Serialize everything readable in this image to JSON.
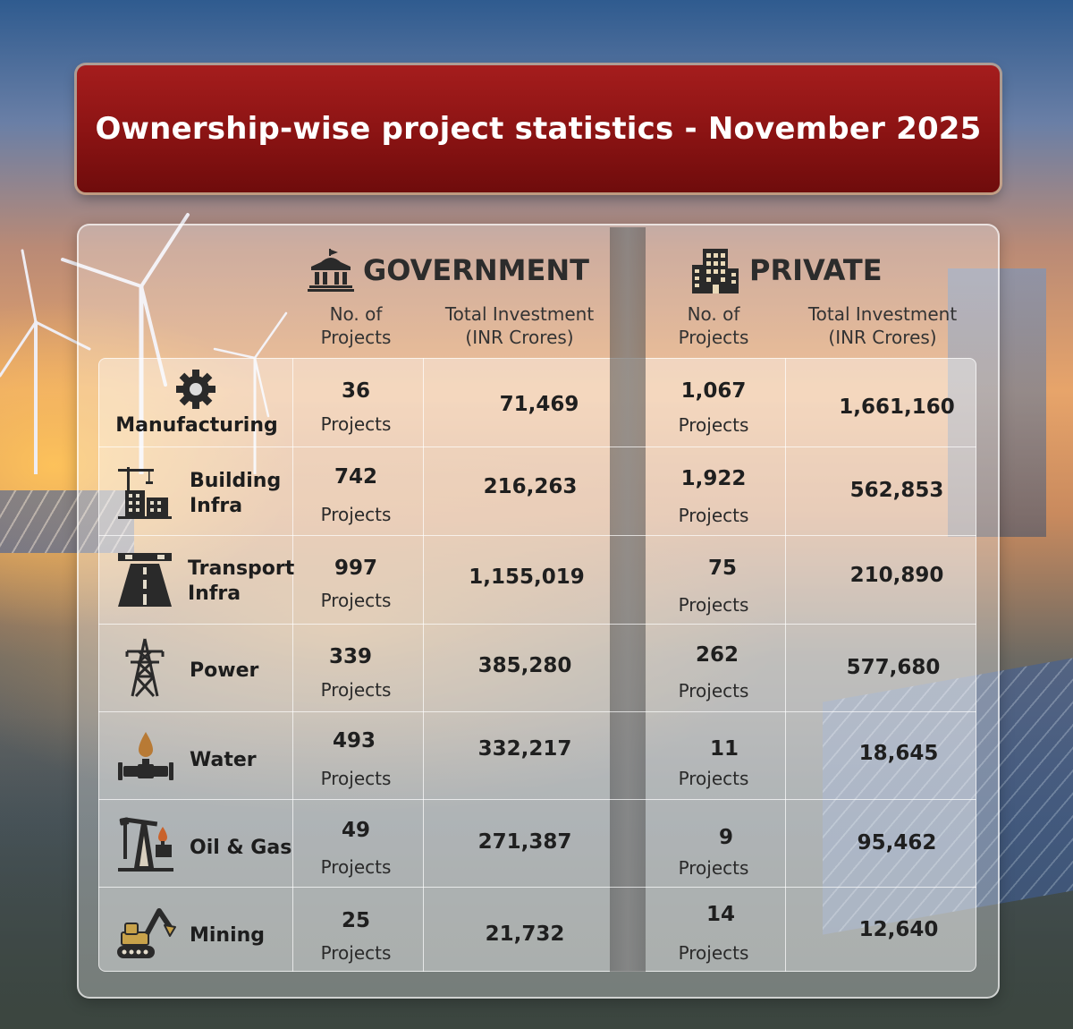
{
  "title": "Ownership-wise project statistics - November 2025",
  "government": {
    "label": "GOVERNMENT",
    "col_projects": [
      "No. of",
      "Projects"
    ],
    "col_investment": [
      "Total Investment",
      "(INR Crores)"
    ]
  },
  "private": {
    "label": "PRIVATE",
    "col_projects": [
      "No. of",
      "Projects"
    ],
    "col_investment": [
      "Total Investment",
      "(INR Crores)"
    ]
  },
  "rows": [
    {
      "name": [
        "Manufacturing"
      ],
      "icon": "gear-icon",
      "gov_count": "36",
      "gov_unit": "Projects",
      "gov_investment": "71,469",
      "pvt_count": "1,067",
      "pvt_unit": "Projects",
      "pvt_investment": "1,661,160"
    },
    {
      "name": [
        "Building",
        "Infra"
      ],
      "icon": "building-crane-icon",
      "gov_count": "742",
      "gov_unit": "Projects",
      "gov_investment": "216,263",
      "pvt_count": "1,922",
      "pvt_unit": "Projects",
      "pvt_investment": "562,853"
    },
    {
      "name": [
        "Transport",
        "Infra"
      ],
      "icon": "road-icon",
      "gov_count": "997",
      "gov_unit": "Projects",
      "gov_investment": "1,155,019",
      "pvt_count": "75",
      "pvt_unit": "Projects",
      "pvt_investment": "210,890"
    },
    {
      "name": [
        "Power"
      ],
      "icon": "power-tower-icon",
      "gov_count": "339",
      "gov_unit": "Projects",
      "gov_investment": "385,280",
      "pvt_count": "262",
      "pvt_unit": "Projects",
      "pvt_investment": "577,680"
    },
    {
      "name": [
        "Water"
      ],
      "icon": "water-pipe-icon",
      "gov_count": "493",
      "gov_unit": "Projects",
      "gov_investment": "332,217",
      "pvt_count": "11",
      "pvt_unit": "Projects",
      "pvt_investment": "18,645"
    },
    {
      "name": [
        "Oil & Gas"
      ],
      "icon": "oil-pump-icon",
      "gov_count": "49",
      "gov_unit": "Projects",
      "gov_investment": "271,387",
      "pvt_count": "9",
      "pvt_unit": "Projects",
      "pvt_investment": "95,462"
    },
    {
      "name": [
        "Mining"
      ],
      "icon": "excavator-icon",
      "gov_count": "25",
      "gov_unit": "Projects",
      "gov_investment": "21,732",
      "pvt_count": "14",
      "pvt_unit": "Projects",
      "pvt_investment": "12,640"
    }
  ]
}
